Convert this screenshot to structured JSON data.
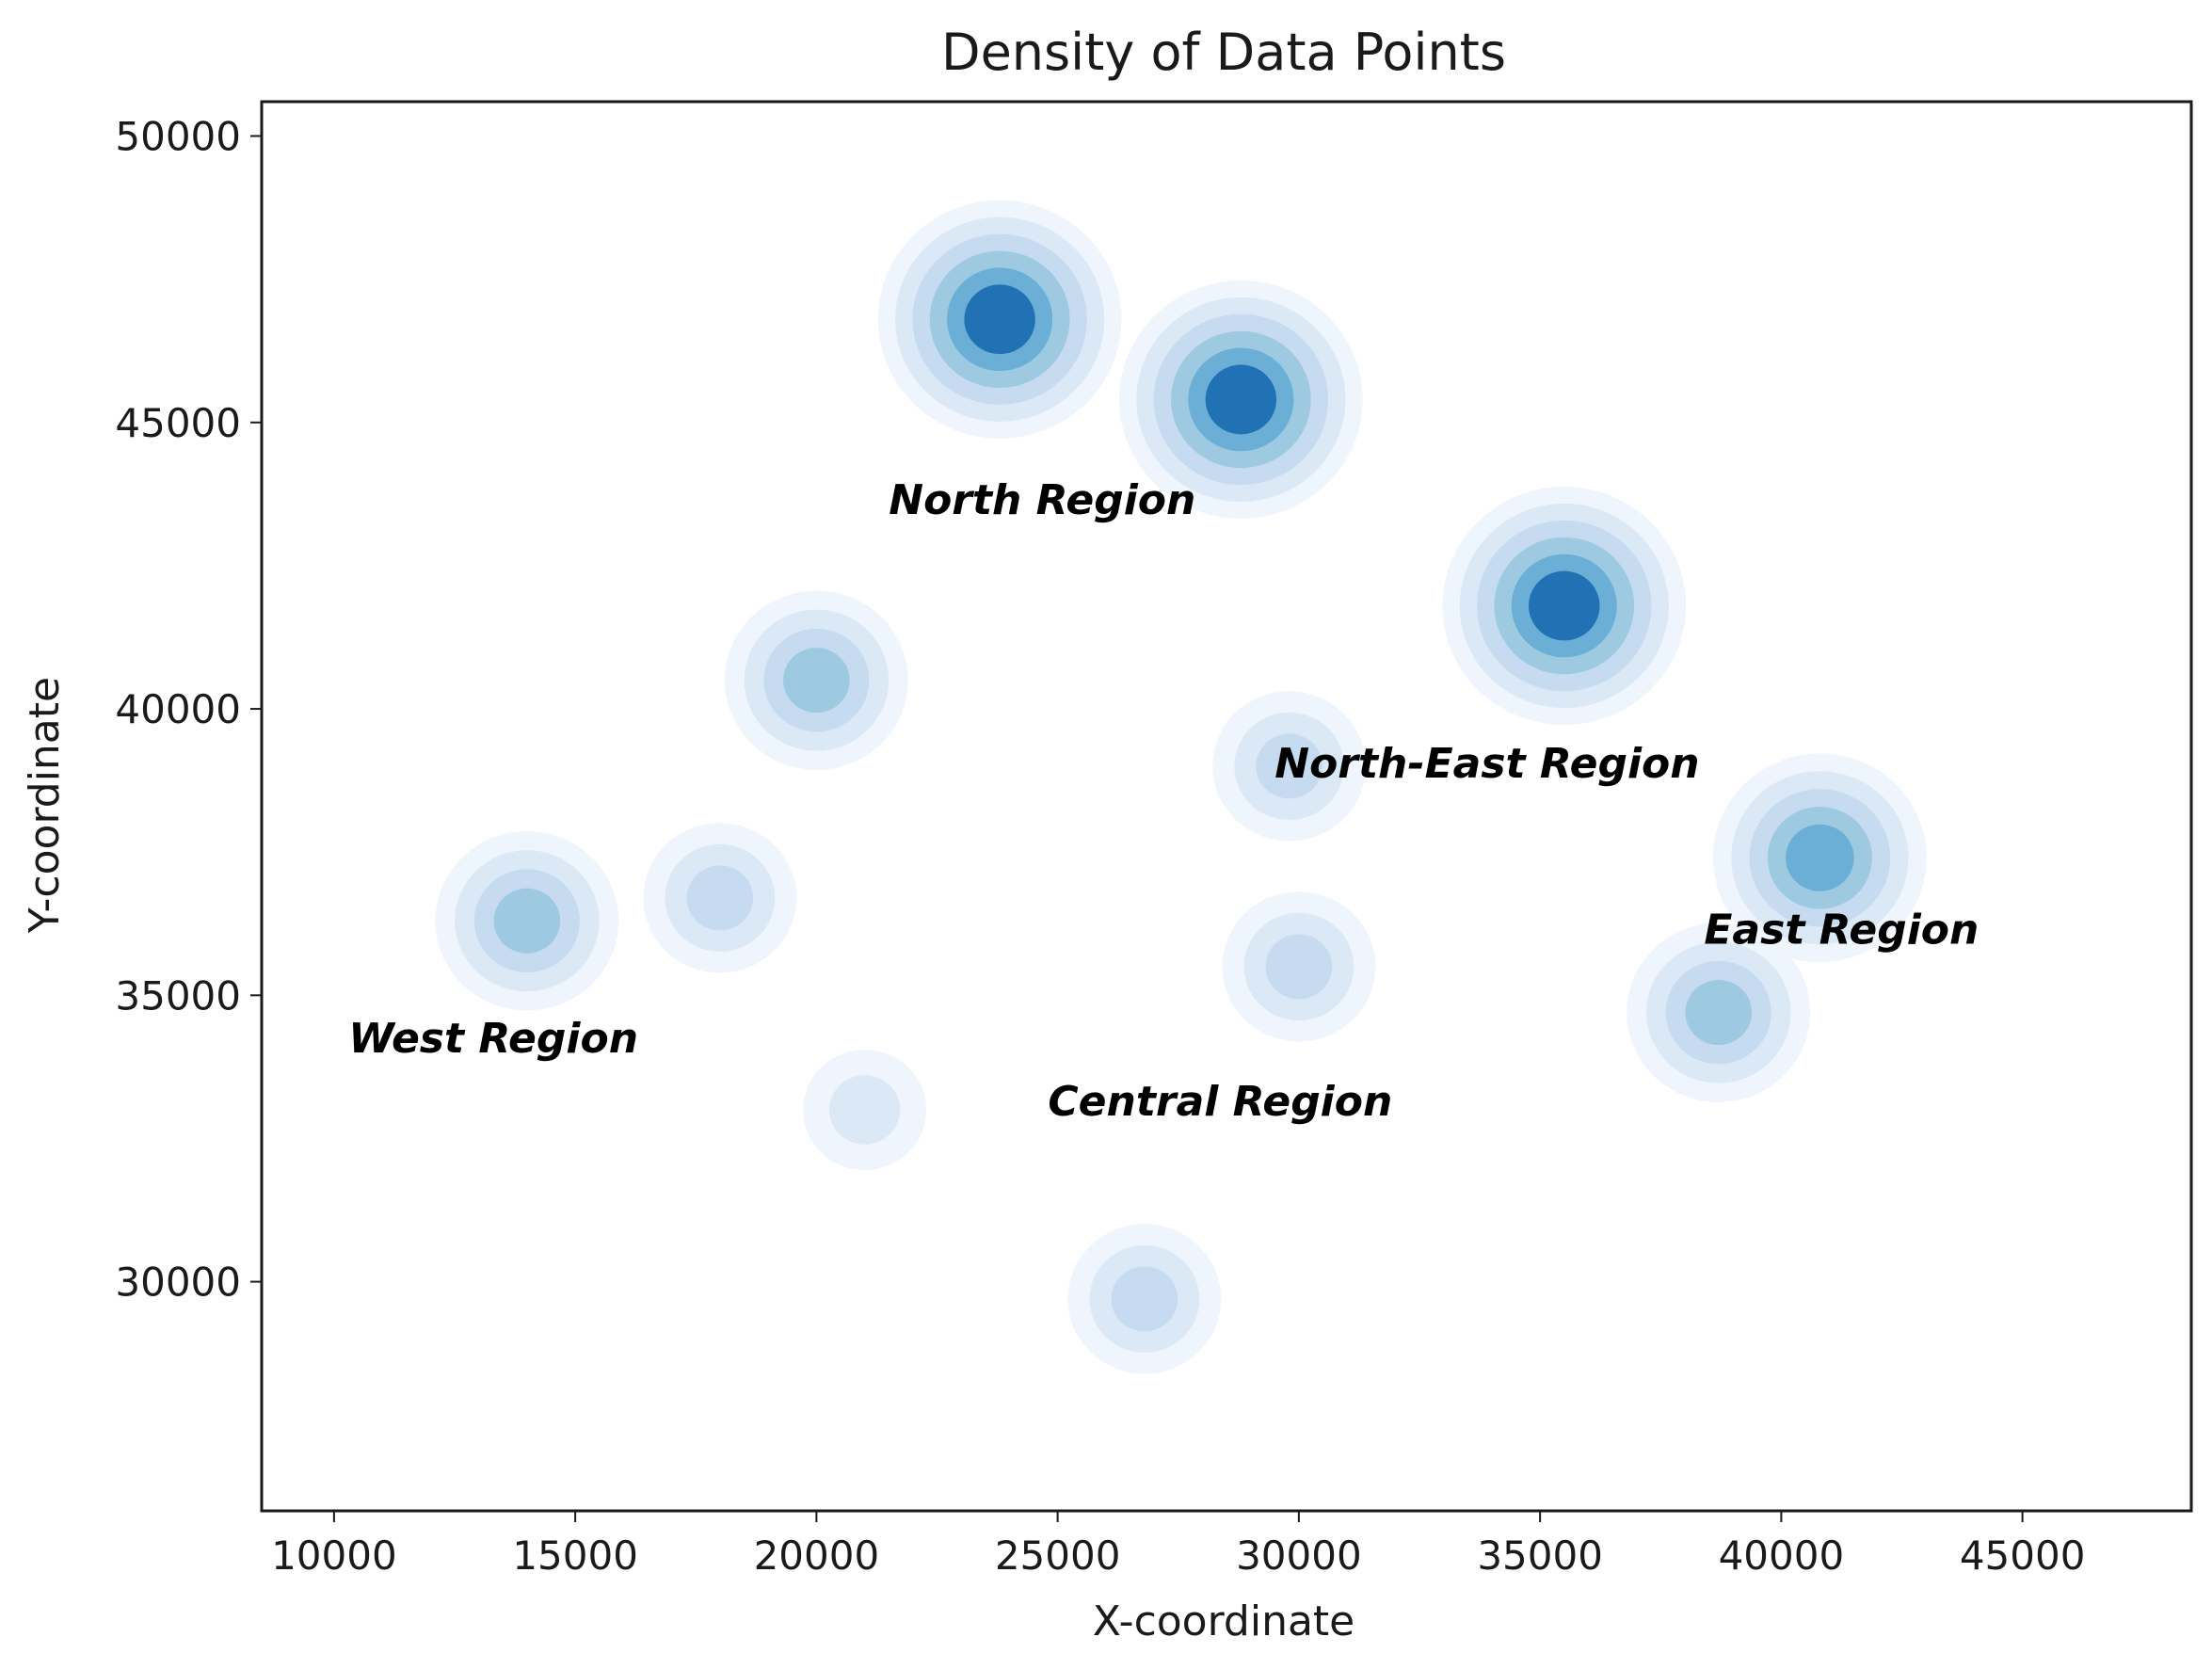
{
  "chart_data": {
    "type": "kde-density-contour",
    "title": "Density of Data Points",
    "xlabel": "X-coordinate",
    "ylabel": "Y-coordinate",
    "xlim": [
      8500,
      48500
    ],
    "ylim": [
      26000,
      50600
    ],
    "x_ticks": [
      10000,
      15000,
      20000,
      25000,
      30000,
      35000,
      40000,
      45000
    ],
    "y_ticks": [
      30000,
      35000,
      40000,
      45000,
      50000
    ],
    "grid": false,
    "colormap": [
      "#eff5fc",
      "#dbe9f6",
      "#c6dbef",
      "#9ecae1",
      "#6baed6",
      "#2171b5"
    ],
    "density_peaks": [
      {
        "x": 23800,
        "y": 46800,
        "level": 6
      },
      {
        "x": 28800,
        "y": 45400,
        "level": 6
      },
      {
        "x": 35500,
        "y": 41800,
        "level": 6
      },
      {
        "x": 20000,
        "y": 40500,
        "level": 4
      },
      {
        "x": 14000,
        "y": 36300,
        "level": 4
      },
      {
        "x": 18000,
        "y": 36700,
        "level": 3
      },
      {
        "x": 29800,
        "y": 39000,
        "level": 3
      },
      {
        "x": 30000,
        "y": 35500,
        "level": 3
      },
      {
        "x": 40800,
        "y": 37400,
        "level": 5
      },
      {
        "x": 38700,
        "y": 34700,
        "level": 4
      },
      {
        "x": 21000,
        "y": 33000,
        "level": 2
      },
      {
        "x": 26800,
        "y": 29700,
        "level": 3
      }
    ],
    "annotations": [
      {
        "text": "North Region",
        "x": 21500,
        "y": 43400
      },
      {
        "text": "North-East Region",
        "x": 29500,
        "y": 38800
      },
      {
        "text": "East Region",
        "x": 38400,
        "y": 35900
      },
      {
        "text": "West Region",
        "x": 10300,
        "y": 34000
      },
      {
        "text": "Central Region",
        "x": 24800,
        "y": 32900
      }
    ]
  }
}
